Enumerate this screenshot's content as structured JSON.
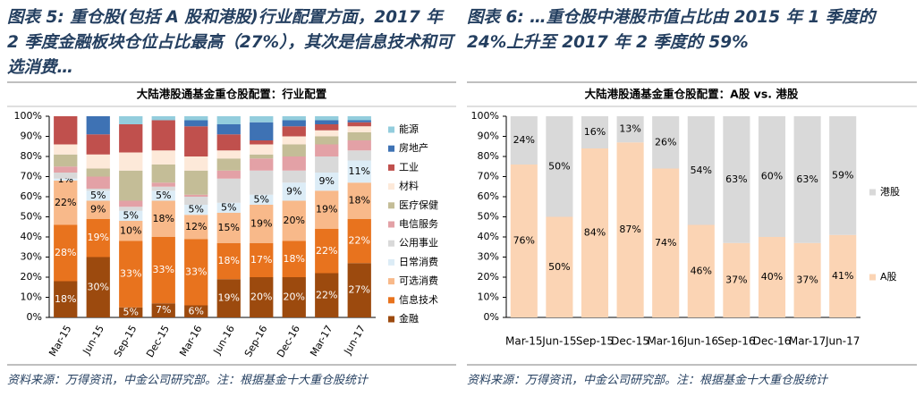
{
  "chart_data": [
    {
      "type": "bar",
      "stacked": true,
      "caption": "图表 5: 重仓股(包括 A 股和港股)行业配置方面，2017 年 2 季度金融板块仓位占比最高（27%），其次是信息技术和可选消费…",
      "title": "大陆港股通基金重仓股配置：行业配置",
      "source": "资料来源：万得资讯，中金公司研究部。注：根据基金十大重仓股统计",
      "categories": [
        "Mar-15",
        "Jun-15",
        "Sep-15",
        "Dec-15",
        "Mar-16",
        "Jun-16",
        "Sep-16",
        "Dec-16",
        "Mar-17",
        "Jun-17"
      ],
      "series": [
        {
          "name": "金融",
          "color": "#9c4a0e",
          "label_color": "#ffffff",
          "values": [
            18,
            30,
            5,
            7,
            6,
            19,
            20,
            20,
            22,
            27
          ],
          "value_labels": [
            "18%",
            "30%",
            "5%",
            "7%",
            "6%",
            "19%",
            "20%",
            "20%",
            "22%",
            "27%"
          ]
        },
        {
          "name": "信息技术",
          "color": "#e8731e",
          "label_color": "#ffffff",
          "values": [
            28,
            19,
            33,
            33,
            33,
            18,
            17,
            18,
            22,
            22
          ],
          "value_labels": [
            "28%",
            "19%",
            "33%",
            "33%",
            "33%",
            "18%",
            "17%",
            "18%",
            "22%",
            "22%"
          ]
        },
        {
          "name": "可选消费",
          "color": "#f8b98a",
          "label_color": "#000000",
          "values": [
            22,
            9,
            10,
            18,
            12,
            15,
            19,
            20,
            19,
            18
          ],
          "value_labels": [
            "22%",
            "9%",
            "10%",
            "18%",
            "12%",
            "15%",
            "19%",
            "20%",
            "19%",
            "18%"
          ]
        },
        {
          "name": "日常消费",
          "color": "#dcecf6",
          "label_color": "#000000",
          "values": [
            1,
            5,
            5,
            5,
            5,
            5,
            5,
            9,
            9,
            11
          ],
          "value_labels": [
            "1%",
            "5%",
            "5%",
            "5%",
            "5%",
            "5%",
            "5%",
            "9%",
            "9%",
            "11%"
          ]
        },
        {
          "name": "公用事业",
          "color": "#d9d9d9",
          "values": [
            3,
            1,
            2,
            2,
            4,
            12,
            12,
            6,
            8,
            5
          ]
        },
        {
          "name": "电信服务",
          "color": "#e3a1a6",
          "values": [
            3,
            6,
            3,
            2,
            1,
            4,
            6,
            7,
            6,
            5
          ]
        },
        {
          "name": "医疗保健",
          "color": "#c4bd97",
          "values": [
            6,
            4,
            15,
            9,
            12,
            6,
            2,
            6,
            4,
            4
          ]
        },
        {
          "name": "材料",
          "color": "#fde9d9",
          "values": [
            5,
            7,
            9,
            7,
            7,
            4,
            5,
            4,
            3,
            3
          ]
        },
        {
          "name": "工业",
          "color": "#c0504d",
          "values": [
            14,
            10,
            14,
            15,
            15,
            8,
            2,
            5,
            3,
            2
          ]
        },
        {
          "name": "房地产",
          "color": "#3e72b4",
          "values": [
            0,
            9,
            0,
            0,
            3,
            5,
            9,
            3,
            2,
            1
          ]
        },
        {
          "name": "能源",
          "color": "#93cddd",
          "values": [
            0,
            0,
            4,
            2,
            2,
            4,
            3,
            2,
            2,
            2
          ]
        }
      ],
      "ylim": [
        0,
        100
      ],
      "yticks": [
        {
          "value": 0,
          "label": "0%"
        },
        {
          "value": 10,
          "label": "10%"
        },
        {
          "value": 20,
          "label": "20%"
        },
        {
          "value": 30,
          "label": "30%"
        },
        {
          "value": 40,
          "label": "40%"
        },
        {
          "value": 50,
          "label": "50%"
        },
        {
          "value": 60,
          "label": "60%"
        },
        {
          "value": 70,
          "label": "70%"
        },
        {
          "value": 80,
          "label": "80%"
        },
        {
          "value": 90,
          "label": "90%"
        },
        {
          "value": 100,
          "label": "100%"
        }
      ],
      "grid": false,
      "legend": "right"
    },
    {
      "type": "bar",
      "stacked": true,
      "caption": "图表 6: …重仓股中港股市值占比由 2015 年 1 季度的 24%上升至 2017 年 2 季度的 59%",
      "title": "大陆港股通基金重仓股配置：A股 vs. 港股",
      "source": "资料来源：万得资讯，中金公司研究部。注：根据基金十大重仓股统计",
      "categories": [
        "Mar-15",
        "Jun-15",
        "Sep-15",
        "Dec-15",
        "Mar-16",
        "Jun-16",
        "Sep-16",
        "Dec-16",
        "Mar-17",
        "Jun-17"
      ],
      "series": [
        {
          "name": "A股",
          "color": "#fbd4b4",
          "label_color": "#000000",
          "values": [
            76,
            50,
            84,
            87,
            74,
            46,
            37,
            40,
            37,
            41
          ],
          "value_labels": [
            "76%",
            "50%",
            "84%",
            "87%",
            "74%",
            "46%",
            "37%",
            "40%",
            "37%",
            "41%"
          ]
        },
        {
          "name": "港股",
          "color": "#d9d9d9",
          "label_color": "#000000",
          "values": [
            24,
            50,
            16,
            13,
            26,
            54,
            63,
            60,
            63,
            59
          ],
          "value_labels": [
            "24%",
            "50%",
            "16%",
            "13%",
            "26%",
            "54%",
            "63%",
            "60%",
            "63%",
            "59%"
          ]
        }
      ],
      "ylim": [
        0,
        100
      ],
      "yticks": [
        {
          "value": 0,
          "label": "0%"
        },
        {
          "value": 10,
          "label": "10%"
        },
        {
          "value": 20,
          "label": "20%"
        },
        {
          "value": 30,
          "label": "30%"
        },
        {
          "value": 40,
          "label": "40%"
        },
        {
          "value": 50,
          "label": "50%"
        },
        {
          "value": 60,
          "label": "60%"
        },
        {
          "value": 70,
          "label": "70%"
        },
        {
          "value": 80,
          "label": "80%"
        },
        {
          "value": 90,
          "label": "90%"
        },
        {
          "value": 100,
          "label": "100%"
        }
      ],
      "grid": false,
      "legend": "right"
    }
  ]
}
